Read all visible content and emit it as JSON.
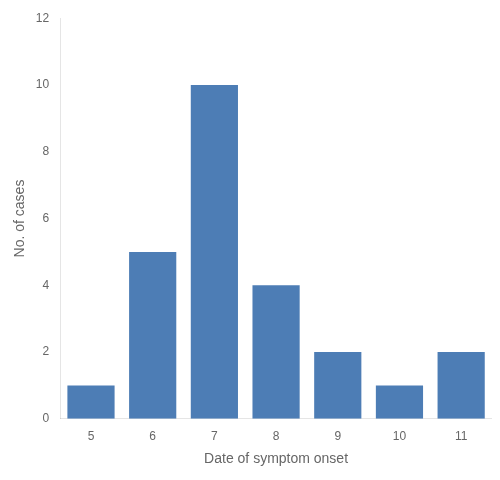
{
  "chart_data": {
    "type": "bar",
    "categories": [
      "5",
      "6",
      "7",
      "8",
      "9",
      "10",
      "11"
    ],
    "values": [
      1,
      5,
      10,
      4,
      2,
      1,
      2
    ],
    "color": "#4d7db5",
    "xlabel": "Date of symptom onset",
    "ylabel": "No. of cases",
    "ylim": [
      0,
      12
    ],
    "yticks": [
      0,
      2,
      4,
      6,
      8,
      10,
      12
    ],
    "grid": false
  }
}
